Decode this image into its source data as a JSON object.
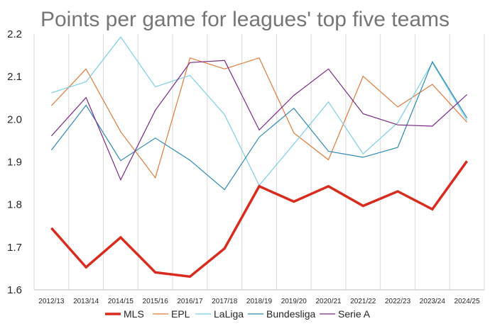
{
  "chart_data": {
    "type": "line",
    "title": "Points per game for leagues' top five teams",
    "xlabel": "",
    "ylabel": "",
    "categories": [
      "2012/13",
      "2013/14",
      "2014/15",
      "2015/16",
      "2016/17",
      "2017/18",
      "2018/19",
      "2019/20",
      "2020/21",
      "2021/22",
      "2022/23",
      "2023/24",
      "2024/25"
    ],
    "ylim": [
      1.6,
      2.2
    ],
    "yticks": [
      "1.6",
      "1.7",
      "1.8",
      "1.9",
      "2.0",
      "2.1",
      "2.2"
    ],
    "grid": "vertical",
    "legend": "bottom",
    "series": [
      {
        "name": "MLS",
        "color": "#d92b1e",
        "width": 3.5,
        "values": [
          1.745,
          1.653,
          1.723,
          1.641,
          1.631,
          1.697,
          1.843,
          1.807,
          1.843,
          1.797,
          1.831,
          1.789,
          1.902
        ]
      },
      {
        "name": "EPL",
        "color": "#e07a3a",
        "width": 1.2,
        "values": [
          2.032,
          2.118,
          1.971,
          1.863,
          2.144,
          2.118,
          2.144,
          1.968,
          1.905,
          2.101,
          2.029,
          2.082,
          1.993
        ]
      },
      {
        "name": "LaLiga",
        "color": "#7ecfe6",
        "width": 1.2,
        "values": [
          2.062,
          2.088,
          2.193,
          2.076,
          2.103,
          2.011,
          1.845,
          1.942,
          2.041,
          1.919,
          1.992,
          2.133,
          1.997
        ]
      },
      {
        "name": "Bundesliga",
        "color": "#2e89b4",
        "width": 1.2,
        "values": [
          1.928,
          2.033,
          1.903,
          1.956,
          1.904,
          1.835,
          1.958,
          2.026,
          1.925,
          1.911,
          1.934,
          2.135,
          2.003
        ]
      },
      {
        "name": "Serie A",
        "color": "#7b2a8a",
        "width": 1.2,
        "values": [
          1.961,
          2.051,
          1.858,
          2.021,
          2.133,
          2.138,
          1.975,
          2.056,
          2.118,
          2.013,
          1.987,
          1.984,
          2.058
        ]
      }
    ]
  }
}
